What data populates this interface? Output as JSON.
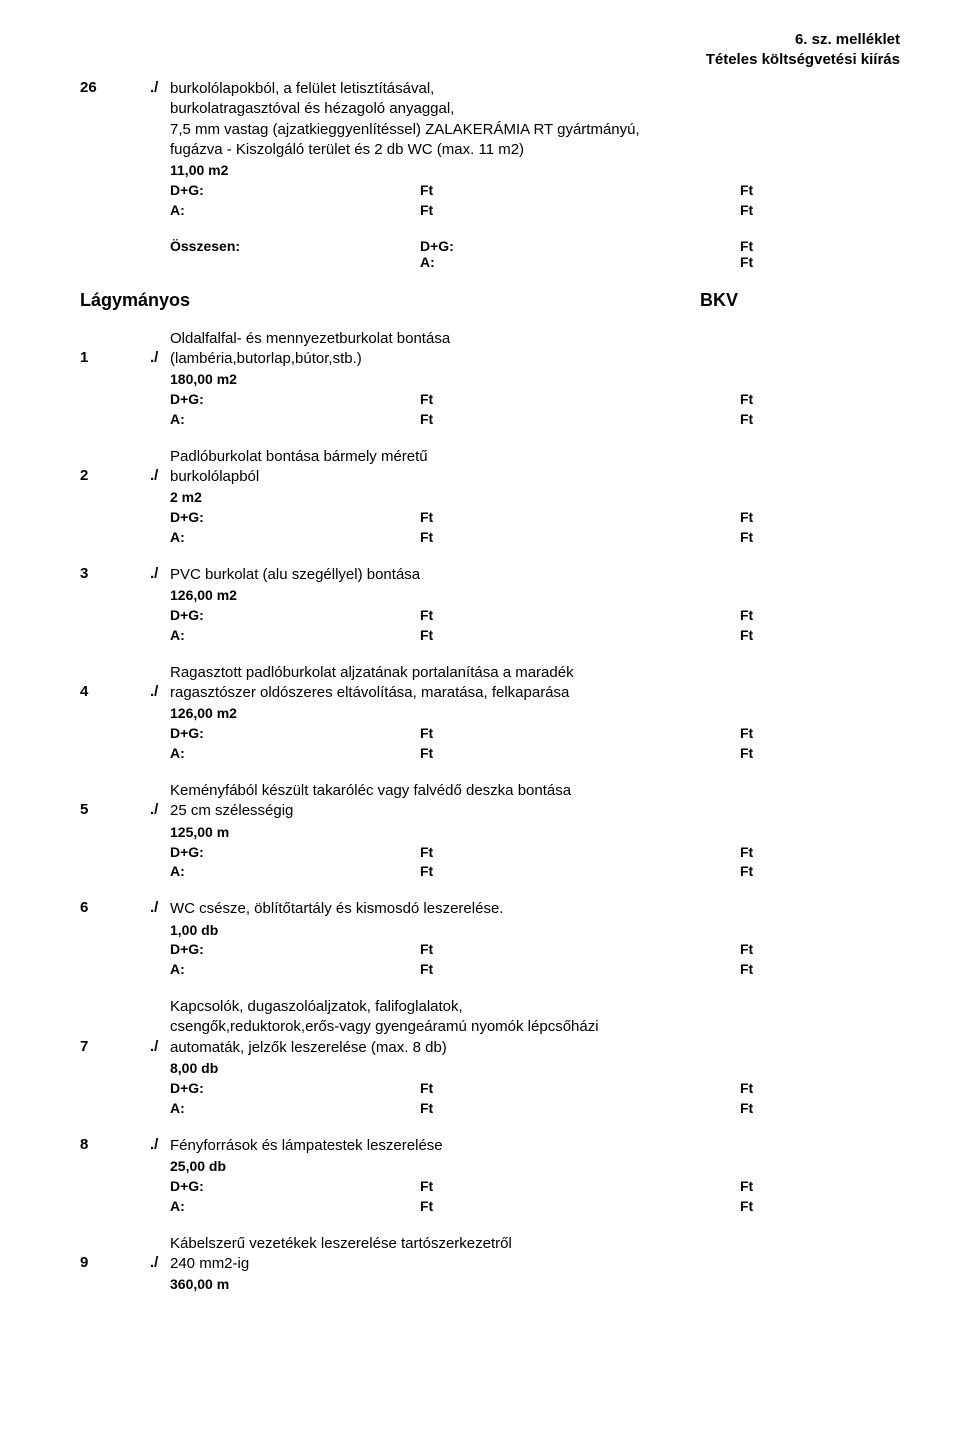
{
  "header": {
    "line1": "6. sz. melléklet",
    "line2": "Tételes költségvetési kiírás"
  },
  "labels": {
    "dg": "D+G:",
    "a": "A:",
    "ft": "Ft",
    "osszesen": "Összesen:",
    "slash": "./"
  },
  "top_item": {
    "num": "26",
    "lines": [
      "burkolólapokból, a felület letisztításával,",
      "burkolatragasztóval és hézagoló anyaggal,",
      "7,5 mm vastag (ajzatkieggyenlítéssel) ZALAKERÁMIA RT gyártmányú,",
      "fugázva - Kiszolgáló terület és 2 db WC (max. 11 m2)"
    ],
    "qty": "11,00 m2"
  },
  "section": {
    "left": "Lágymányos",
    "right": "BKV"
  },
  "items": [
    {
      "num": "1",
      "lines": [
        "Oldalfalfal- és mennyezetburkolat bontása",
        "(lambéria,butorlap,bútor,stb.)"
      ],
      "qty": "180,00 m2",
      "num_align_last": true
    },
    {
      "num": "2",
      "lines": [
        "Padlóburkolat bontása bármely méretű",
        "burkolólapból"
      ],
      "qty": "2 m2",
      "num_align_last": true
    },
    {
      "num": "3",
      "lines": [
        "PVC burkolat (alu szegéllyel) bontása"
      ],
      "qty": "126,00 m2",
      "num_align_last": false
    },
    {
      "num": "4",
      "lines": [
        "Ragasztott padlóburkolat aljzatának portalanítása a maradék",
        "ragasztószer oldószeres eltávolítása, maratása, felkaparása"
      ],
      "qty": "126,00 m2",
      "num_align_last": true
    },
    {
      "num": "5",
      "lines": [
        "Keményfából készült takaróléc vagy falvédő deszka bontása",
        "25 cm szélességig"
      ],
      "qty": "125,00 m",
      "num_align_last": true
    },
    {
      "num": "6",
      "lines": [
        "WC csésze, öblítőtartály és kismosdó leszerelése."
      ],
      "qty": "1,00 db",
      "num_align_last": false
    },
    {
      "num": "7",
      "lines": [
        "Kapcsolók, dugaszolóaljzatok, falifoglalatok,",
        "csengők,reduktorok,erős-vagy gyengeáramú nyomók lépcsőházi",
        "automaták, jelzők leszerelése (max. 8 db)"
      ],
      "qty": "8,00 db",
      "num_align_last": true
    },
    {
      "num": "8",
      "lines": [
        "Fényforrások és lámpatestek leszerelése"
      ],
      "qty": "25,00 db",
      "num_align_last": false
    },
    {
      "num": "9",
      "lines": [
        "Kábelszerű vezetékek leszerelése tartószerkezetről",
        "240 mm2-ig"
      ],
      "qty": "360,00 m",
      "num_align_last": true,
      "no_dga": true
    }
  ]
}
